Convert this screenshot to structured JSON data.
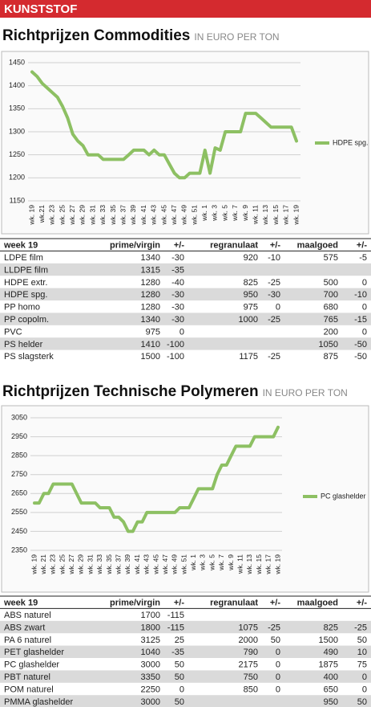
{
  "header": {
    "title": "KUNSTSTOF"
  },
  "sections": [
    {
      "title": "Richtprijzen Commodities",
      "subtitle": "IN EURO PER TON",
      "table": {
        "header": [
          "week 19",
          "prime/virgin",
          "+/-",
          "regranulaat",
          "+/-",
          "maalgoed",
          "+/-"
        ],
        "rows": [
          [
            "LDPE film",
            1340,
            -30,
            920,
            -10,
            575,
            -5
          ],
          [
            "LLDPE film",
            1315,
            -35,
            null,
            null,
            null,
            null
          ],
          [
            "HDPE extr.",
            1280,
            -40,
            825,
            -25,
            500,
            0
          ],
          [
            "HDPE spg.",
            1280,
            -30,
            950,
            -30,
            700,
            -10
          ],
          [
            "PP homo",
            1280,
            -30,
            975,
            0,
            680,
            0
          ],
          [
            "PP copolm.",
            1340,
            -30,
            1000,
            -25,
            765,
            -15
          ],
          [
            "PVC",
            975,
            0,
            null,
            null,
            200,
            0
          ],
          [
            "PS helder",
            1410,
            -100,
            null,
            null,
            1050,
            -50
          ],
          [
            "PS slagsterk",
            1500,
            -100,
            1175,
            -25,
            875,
            -50
          ]
        ]
      }
    },
    {
      "title": "Richtprijzen Technische Polymeren",
      "subtitle": "IN EURO PER TON",
      "table": {
        "header": [
          "week 19",
          "prime/virgin",
          "+/-",
          "regranulaat",
          "+/-",
          "maalgoed",
          "+/-"
        ],
        "rows": [
          [
            "ABS naturel",
            1700,
            -115,
            null,
            null,
            null,
            null
          ],
          [
            "ABS zwart",
            1800,
            -115,
            1075,
            -25,
            825,
            -25
          ],
          [
            "PA 6 naturel",
            3125,
            25,
            2000,
            50,
            1500,
            50
          ],
          [
            "PET glashelder",
            1040,
            -35,
            790,
            0,
            490,
            10
          ],
          [
            "PC glashelder",
            3000,
            50,
            2175,
            0,
            1875,
            75
          ],
          [
            "PBT naturel",
            3350,
            50,
            750,
            0,
            400,
            0
          ],
          [
            "POM naturel",
            2250,
            0,
            850,
            0,
            650,
            0
          ],
          [
            "PMMA glashelder",
            3000,
            50,
            null,
            null,
            950,
            50
          ]
        ]
      }
    }
  ],
  "chart_data": [
    {
      "type": "line",
      "grid": true,
      "legend": "right",
      "ylim": [
        1150,
        1450
      ],
      "yticks": [
        1150,
        1200,
        1250,
        1300,
        1350,
        1400,
        1450
      ],
      "categories": [
        "wk. 19",
        null,
        "wk.21",
        null,
        "wk. 23",
        null,
        "wk. 25",
        null,
        "wk. 27",
        null,
        "wk. 29",
        null,
        "wk. 31",
        null,
        "wk. 33",
        null,
        "wk. 35",
        null,
        "wk. 37",
        null,
        "wk. 39",
        null,
        "wk. 41",
        null,
        "wk. 43",
        null,
        "wk. 45",
        null,
        "wk. 47",
        null,
        "wk. 49",
        null,
        "wk. 51",
        null,
        "wk. 1",
        null,
        "wk. 3",
        null,
        "wk. 5",
        null,
        "wk. 7",
        null,
        "wk. 9",
        null,
        "wk. 11",
        null,
        "wk. 13",
        null,
        "wk. 15",
        null,
        "wk. 17",
        null,
        "wk. 19"
      ],
      "series": [
        {
          "name": "HDPE spg.",
          "color": "#8dc063",
          "values": [
            1430,
            1420,
            1405,
            1395,
            1385,
            1375,
            1355,
            1330,
            1295,
            1280,
            1270,
            1250,
            1250,
            1250,
            1240,
            1240,
            1240,
            1240,
            1240,
            1250,
            1260,
            1260,
            1260,
            1250,
            1260,
            1250,
            1250,
            1230,
            1210,
            1200,
            1200,
            1210,
            1210,
            1210,
            1260,
            1210,
            1265,
            1260,
            1300,
            1300,
            1300,
            1300,
            1340,
            1340,
            1340,
            1330,
            1320,
            1310,
            1310,
            1310,
            1310,
            1310,
            1280
          ]
        }
      ]
    },
    {
      "type": "line",
      "grid": true,
      "legend": "right",
      "ylim": [
        2350,
        3050
      ],
      "yticks": [
        2350,
        2450,
        2550,
        2650,
        2750,
        2850,
        2950,
        3050
      ],
      "categories": [
        "wk. 19",
        null,
        "wk. 21",
        null,
        "wk. 23",
        null,
        "wk. 25",
        null,
        "wk. 27",
        null,
        "wk. 29",
        null,
        "wk. 31",
        null,
        "wk. 33",
        null,
        "wk. 35",
        null,
        "wk. 37",
        null,
        "wk. 39",
        null,
        "wk. 41",
        null,
        "wk. 43",
        null,
        "wk. 45",
        null,
        "wk. 47",
        null,
        "wk. 49",
        null,
        "wk. 51",
        null,
        "wk. 1",
        null,
        "wk. 3",
        null,
        "wk. 5",
        null,
        "wk. 7",
        null,
        "wk. 9",
        null,
        "wk. 11",
        null,
        "wk. 13",
        null,
        "wk. 15",
        null,
        "wk. 17",
        null,
        "wk. 19"
      ],
      "series": [
        {
          "name": "PC glashelder",
          "color": "#8dc063",
          "values": [
            2600,
            2600,
            2650,
            2650,
            2700,
            2700,
            2700,
            2700,
            2700,
            2650,
            2600,
            2600,
            2600,
            2600,
            2575,
            2575,
            2575,
            2525,
            2525,
            2500,
            2450,
            2450,
            2500,
            2500,
            2550,
            2550,
            2550,
            2550,
            2550,
            2550,
            2550,
            2575,
            2575,
            2575,
            2625,
            2675,
            2675,
            2675,
            2675,
            2750,
            2800,
            2800,
            2850,
            2900,
            2900,
            2900,
            2900,
            2950,
            2950,
            2950,
            2950,
            2950,
            3000
          ]
        }
      ]
    }
  ]
}
